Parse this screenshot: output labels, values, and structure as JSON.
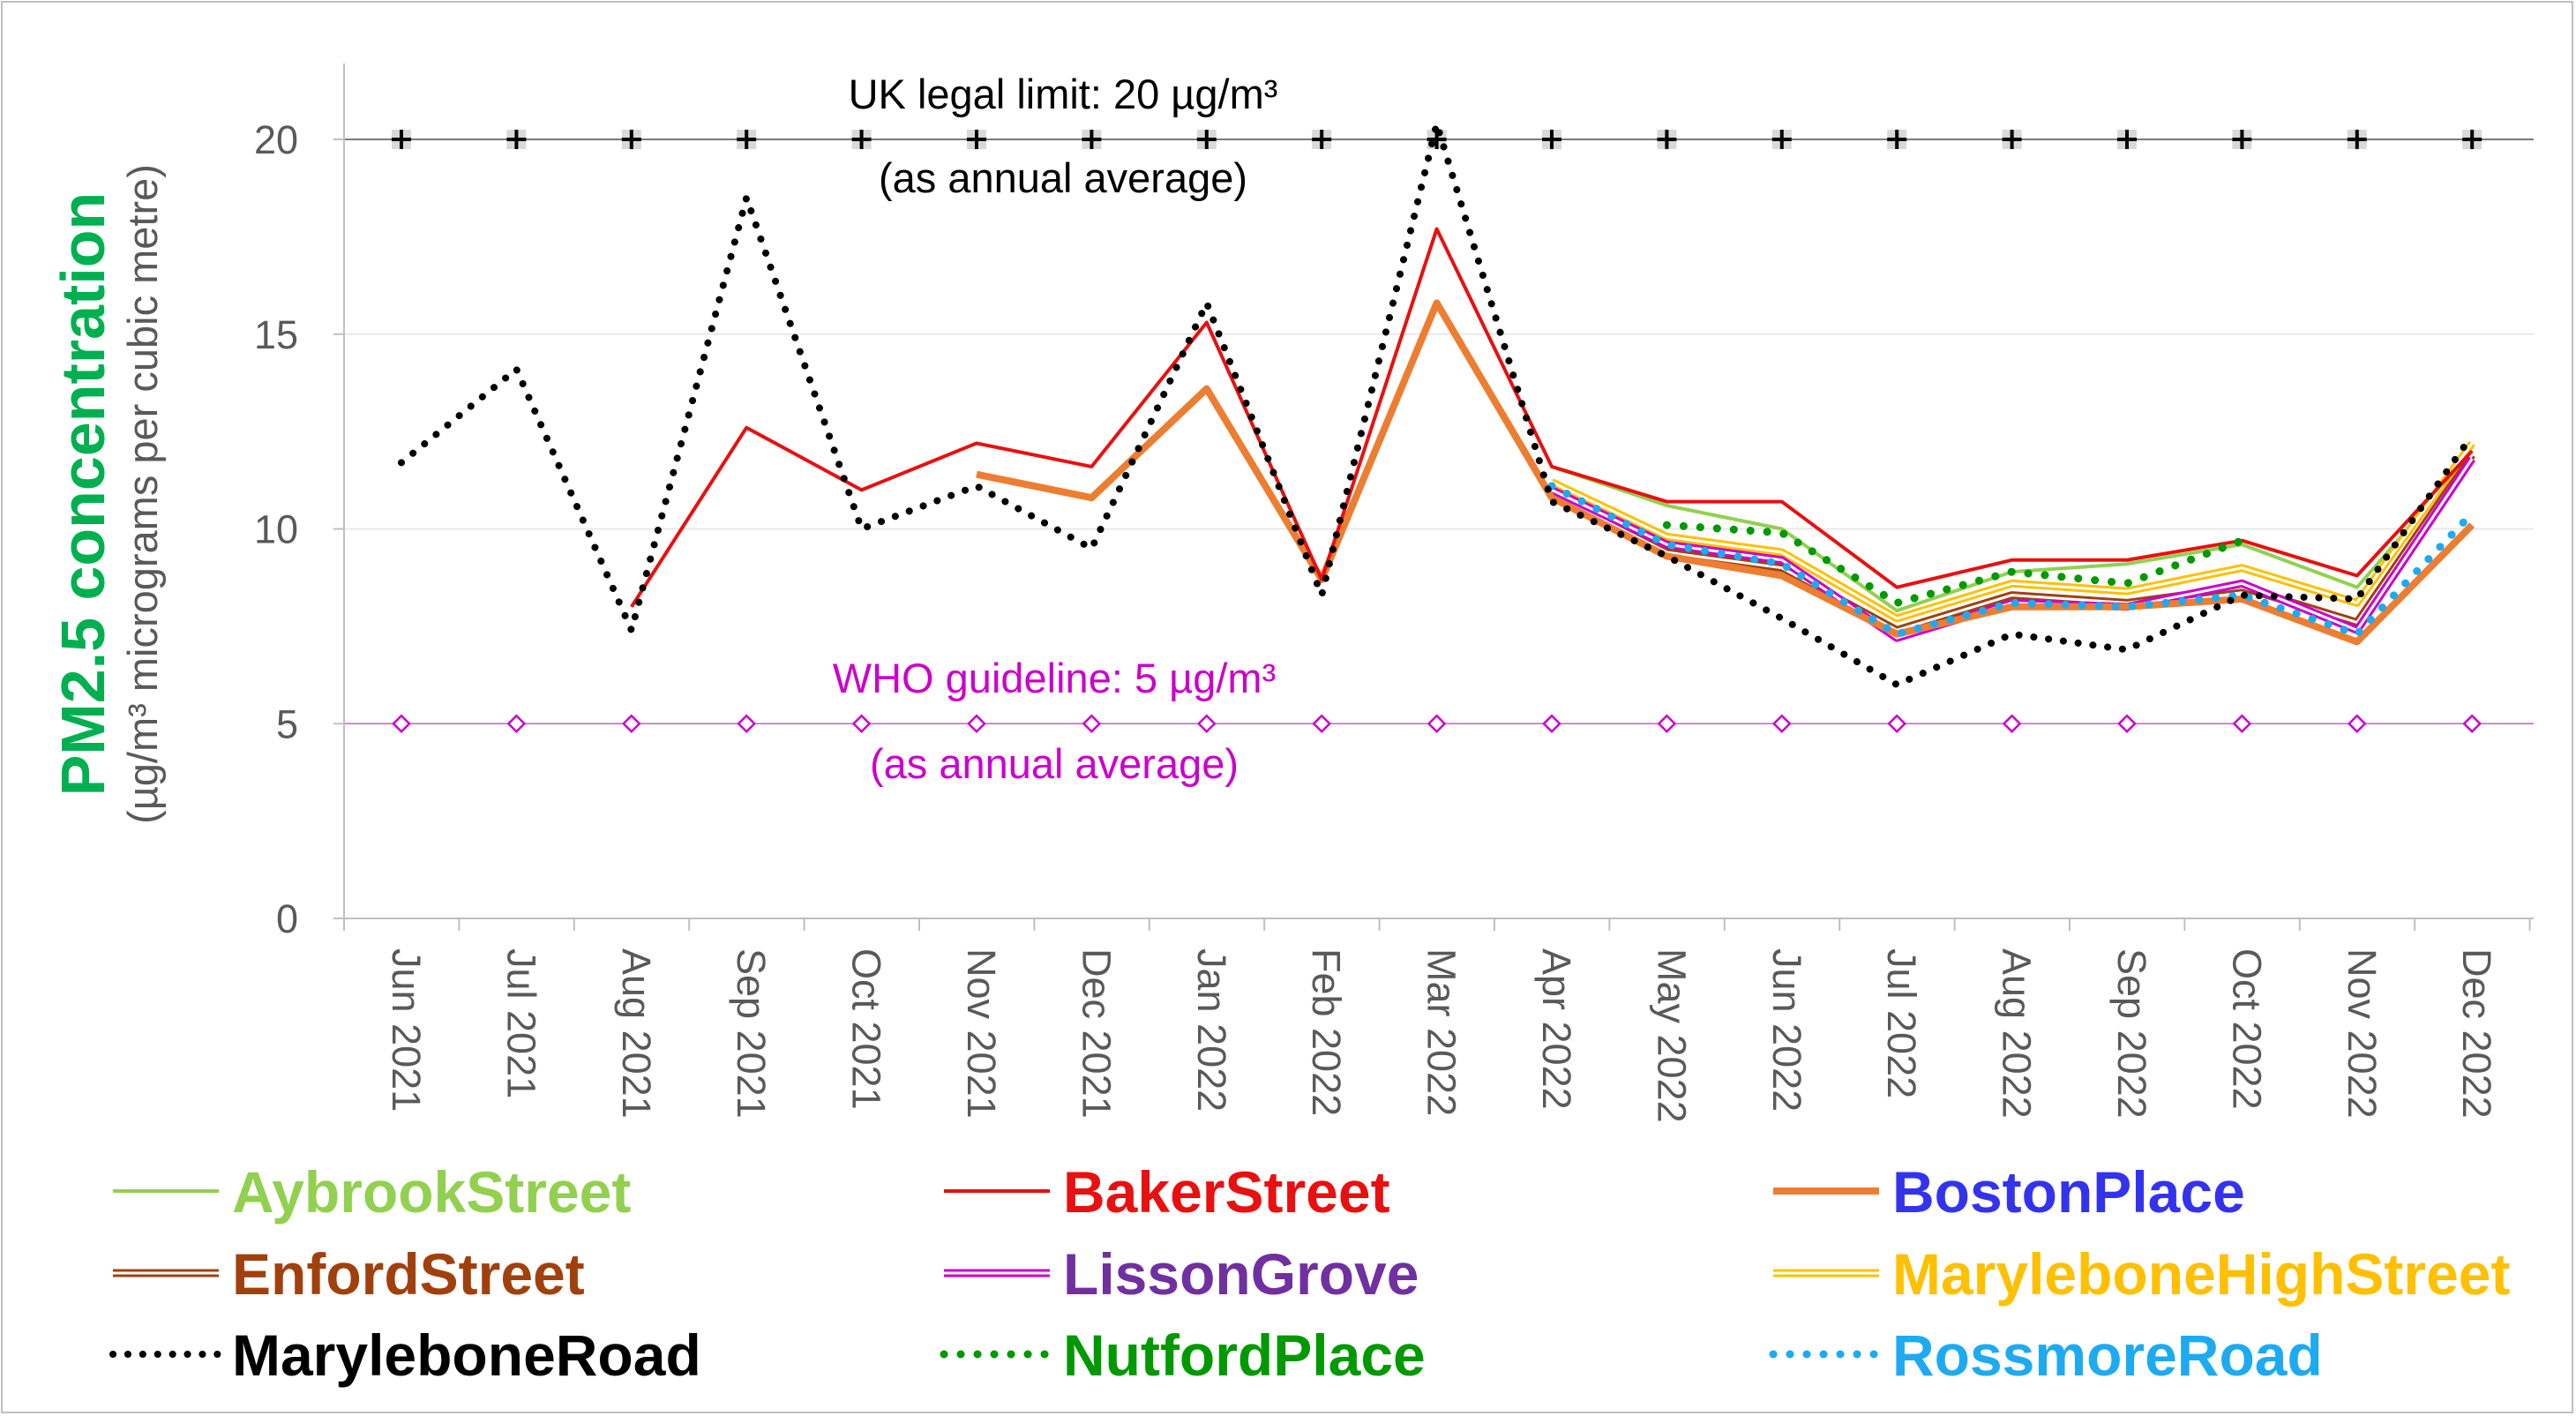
{
  "chart_data": {
    "type": "line",
    "y_axis_title": "PM2.5 concentration",
    "y_axis_subtitle": "(µg/m³ micrograms per cubic metre)",
    "ylim": [
      0,
      22
    ],
    "y_ticks": [
      0,
      5,
      10,
      15,
      20
    ],
    "categories": [
      "Jun 2021",
      "Jul 2021",
      "Aug 2021",
      "Sep 2021",
      "Oct 2021",
      "Nov 2021",
      "Dec 2021",
      "Jan 2022",
      "Feb 2022",
      "Mar 2022",
      "Apr 2022",
      "May 2022",
      "Jun 2022",
      "Jul 2022",
      "Aug 2022",
      "Sep 2022",
      "Oct 2022",
      "Nov 2022",
      "Dec 2022"
    ],
    "grid": "horizontal",
    "legend_position": "bottom",
    "reference_lines": [
      {
        "label": "UK legal limit: 20 µg/m³",
        "sublabel": "(as annual average)",
        "value": 20,
        "color": "#000000",
        "marker": "plus"
      },
      {
        "label": "WHO guideline: 5 µg/m³",
        "sublabel": "(as annual average)",
        "value": 5,
        "color": "#cc00cc",
        "marker": "diamond"
      }
    ],
    "series": [
      {
        "name": "AybrookStreet",
        "color": "#92d050",
        "label_color": "#92d050",
        "style": "solid",
        "width": 4,
        "values": [
          null,
          null,
          null,
          null,
          null,
          null,
          null,
          null,
          null,
          null,
          11.6,
          10.6,
          10.0,
          7.9,
          8.9,
          9.1,
          9.6,
          8.5,
          11.9
        ]
      },
      {
        "name": "BakerStreet",
        "color": "#e81010",
        "label_color": "#e81010",
        "style": "solid",
        "width": 4,
        "values": [
          null,
          null,
          8.0,
          12.6,
          11.0,
          12.2,
          11.6,
          15.3,
          8.7,
          17.7,
          11.6,
          10.7,
          10.7,
          8.5,
          9.2,
          9.2,
          9.7,
          8.8,
          12.0
        ]
      },
      {
        "name": "BostonPlace",
        "color": "#ed7d31",
        "label_color": "#3333ee",
        "style": "solid",
        "width": 8,
        "values": [
          null,
          null,
          null,
          null,
          null,
          11.4,
          10.8,
          13.6,
          8.7,
          15.8,
          10.8,
          9.3,
          8.8,
          7.3,
          8.0,
          8.0,
          8.2,
          7.1,
          10.1
        ]
      },
      {
        "name": "EnfordStreet",
        "color": "#a0410d",
        "label_color": "#a0410d",
        "style": "double",
        "width": 3,
        "values": [
          null,
          null,
          null,
          null,
          null,
          null,
          null,
          null,
          null,
          null,
          10.9,
          9.4,
          9.0,
          7.4,
          8.3,
          8.1,
          8.5,
          7.6,
          11.9
        ]
      },
      {
        "name": "LissonGrove",
        "color": "#cc00cc",
        "label_color": "#7030a0",
        "style": "double",
        "width": 3,
        "values": [
          null,
          null,
          null,
          null,
          null,
          null,
          null,
          null,
          null,
          null,
          11.0,
          9.6,
          9.2,
          7.2,
          8.1,
          8.0,
          8.6,
          7.4,
          11.8
        ]
      },
      {
        "name": "MaryleboneHighStreet",
        "color": "#ffc000",
        "label_color": "#ffc000",
        "style": "double",
        "width": 3,
        "values": [
          null,
          null,
          null,
          null,
          null,
          null,
          null,
          null,
          null,
          null,
          11.2,
          9.8,
          9.4,
          7.7,
          8.6,
          8.4,
          9.0,
          8.1,
          12.2
        ]
      },
      {
        "name": "MaryleboneRoad",
        "color": "#000000",
        "label_color": "#000000",
        "style": "dot",
        "width": 8,
        "values": [
          11.7,
          14.1,
          7.4,
          18.5,
          10.0,
          11.1,
          9.5,
          15.8,
          8.3,
          20.4,
          10.7,
          9.3,
          7.7,
          6.0,
          7.3,
          6.9,
          8.3,
          8.2,
          12.4
        ]
      },
      {
        "name": "NutfordPlace",
        "color": "#009900",
        "label_color": "#009900",
        "style": "dot",
        "width": 9,
        "values": [
          null,
          null,
          null,
          null,
          null,
          null,
          null,
          null,
          null,
          null,
          null,
          10.1,
          9.9,
          8.1,
          8.9,
          8.6,
          9.7,
          null,
          null
        ]
      },
      {
        "name": "RossmoreRoad",
        "color": "#1eaaf1",
        "label_color": "#1eaaf1",
        "style": "dot",
        "width": 9,
        "values": [
          null,
          null,
          null,
          null,
          null,
          null,
          null,
          null,
          null,
          null,
          11.1,
          9.6,
          9.1,
          7.3,
          8.1,
          8.0,
          8.3,
          7.3,
          10.4
        ]
      }
    ]
  }
}
